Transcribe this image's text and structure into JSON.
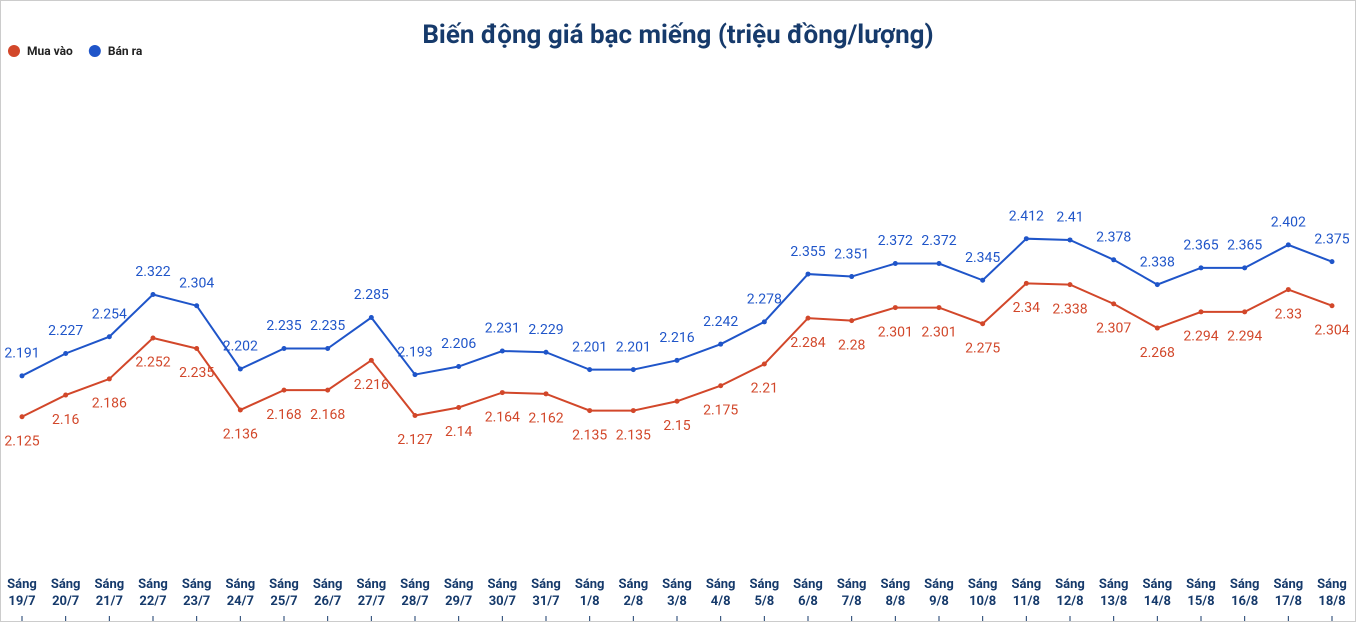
{
  "chart_data": {
    "type": "line",
    "title": "Biến động giá bạc miếng (triệu đồng/lượng)",
    "categories": [
      "Sáng 19/7",
      "Sáng 20/7",
      "Sáng 21/7",
      "Sáng 22/7",
      "Sáng 23/7",
      "Sáng 24/7",
      "Sáng 25/7",
      "Sáng 26/7",
      "Sáng 27/7",
      "Sáng 28/7",
      "Sáng 29/7",
      "Sáng 30/7",
      "Sáng 31/7",
      "Sáng 1/8",
      "Sáng 2/8",
      "Sáng 3/8",
      "Sáng 4/8",
      "Sáng 5/8",
      "Sáng 6/8",
      "Sáng 7/8",
      "Sáng 8/8",
      "Sáng 9/8",
      "Sáng 10/8",
      "Sáng 11/8",
      "Sáng 12/8",
      "Sáng 13/8",
      "Sáng 14/8",
      "Sáng 15/8",
      "Sáng 16/8",
      "Sáng 17/8",
      "Sáng 18/8"
    ],
    "series": [
      {
        "name": "Mua vào",
        "color": "#d2472a",
        "values": [
          2.125,
          2.16,
          2.186,
          2.252,
          2.235,
          2.136,
          2.168,
          2.168,
          2.216,
          2.127,
          2.14,
          2.164,
          2.162,
          2.135,
          2.135,
          2.15,
          2.175,
          2.21,
          2.284,
          2.28,
          2.301,
          2.301,
          2.275,
          2.34,
          2.338,
          2.307,
          2.268,
          2.294,
          2.294,
          2.33,
          2.304
        ]
      },
      {
        "name": "Bán ra",
        "color": "#1f55c9",
        "values": [
          2.191,
          2.227,
          2.254,
          2.322,
          2.304,
          2.202,
          2.235,
          2.235,
          2.285,
          2.193,
          2.206,
          2.231,
          2.229,
          2.201,
          2.201,
          2.216,
          2.242,
          2.278,
          2.355,
          2.351,
          2.372,
          2.372,
          2.345,
          2.412,
          2.41,
          2.378,
          2.338,
          2.365,
          2.365,
          2.402,
          2.375
        ]
      }
    ],
    "ylim": [
      1.87,
      2.7
    ],
    "grid": false,
    "legend": "top-left"
  }
}
